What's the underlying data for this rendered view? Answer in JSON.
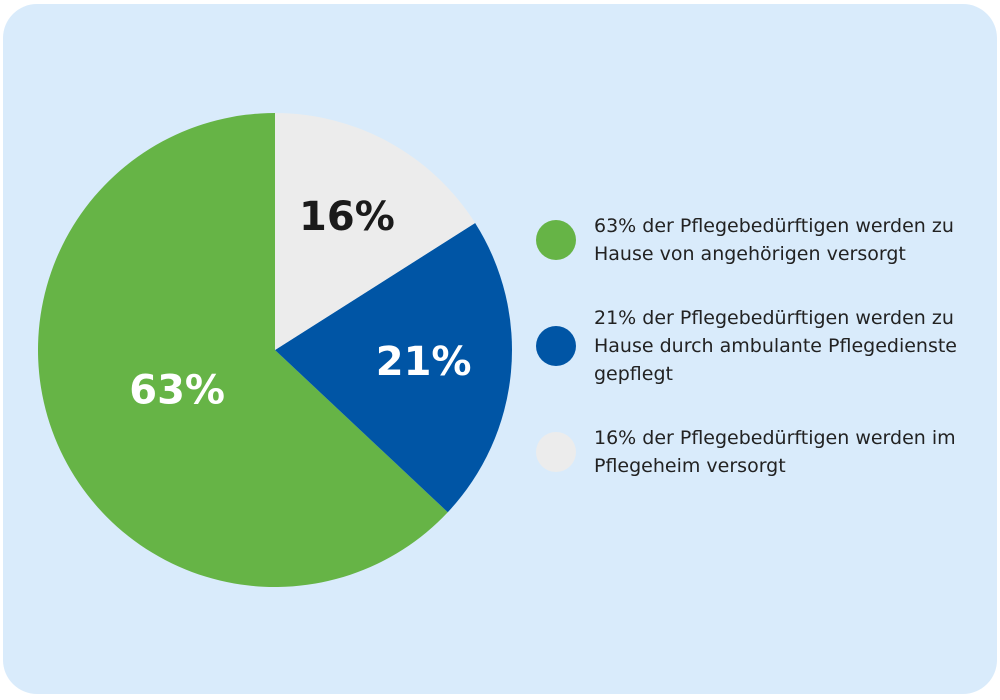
{
  "chart_data": {
    "type": "pie",
    "categories": [
      "63% der Pflegebedürftigen werden zu Hause von angehörigen versorgt",
      "21% der Pflegebedürftigen werden zu Hause durch ambulante Pflegedienste gepflegt",
      "16% der Pflegebedürftigen werden im Pflegeheim versorgt"
    ],
    "values": [
      63,
      21,
      16
    ],
    "value_labels": [
      "63%",
      "21%",
      "16%"
    ],
    "colors": [
      "#66b446",
      "#0055a5",
      "#ececec"
    ],
    "startangle": 90,
    "counterclock": true,
    "legend": "right"
  }
}
